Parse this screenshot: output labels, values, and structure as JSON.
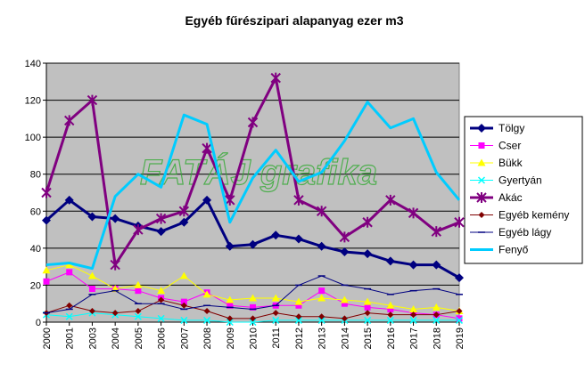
{
  "chart_data": {
    "type": "line",
    "title": "Egyéb fűrészipari alapanyag ezer m3",
    "xlabel": "",
    "ylabel": "",
    "ylim": [
      0,
      140
    ],
    "yticks": [
      0,
      20,
      40,
      60,
      80,
      100,
      120,
      140
    ],
    "grid": true,
    "legend_position": "right",
    "plot_background": "#c0c0c0",
    "categories": [
      "2000",
      "2001",
      "2003",
      "2004",
      "2005",
      "2006",
      "2007",
      "2008",
      "2009",
      "2010",
      "2011",
      "2012",
      "2013",
      "2014",
      "2015",
      "2016",
      "2017",
      "2018",
      "2019"
    ],
    "series": [
      {
        "name": "Tölgy",
        "color": "#000080",
        "marker": "diamond",
        "width": 3,
        "values": [
          55,
          66,
          57,
          56,
          52,
          49,
          54,
          66,
          41,
          42,
          47,
          45,
          41,
          38,
          37,
          33,
          31,
          31,
          24
        ]
      },
      {
        "name": "Cser",
        "color": "#ff00ff",
        "marker": "square",
        "width": 1,
        "values": [
          22,
          27,
          18,
          18,
          17,
          13,
          11,
          16,
          9,
          8,
          9,
          9,
          17,
          10,
          8,
          7,
          5,
          4,
          2
        ]
      },
      {
        "name": "Bükk",
        "color": "#ffff00",
        "marker": "triangle",
        "width": 1,
        "values": [
          28,
          31,
          25,
          18,
          20,
          17,
          25,
          15,
          12,
          13,
          13,
          11,
          13,
          12,
          11,
          9,
          7,
          8,
          6
        ]
      },
      {
        "name": "Gyertyán",
        "color": "#00ffff",
        "marker": "x",
        "width": 1,
        "values": [
          4,
          3,
          5,
          4,
          3,
          2,
          1,
          1,
          0,
          0,
          1,
          1,
          1,
          1,
          1,
          1,
          1,
          1,
          1
        ]
      },
      {
        "name": "Akác",
        "color": "#800080",
        "marker": "star",
        "width": 3,
        "values": [
          70,
          109,
          120,
          31,
          50,
          56,
          60,
          94,
          66,
          108,
          132,
          66,
          60,
          46,
          54,
          66,
          59,
          49,
          54
        ]
      },
      {
        "name": "Egyéb kemény",
        "color": "#800000",
        "marker": "diamond-small",
        "width": 1,
        "values": [
          5,
          9,
          6,
          5,
          6,
          12,
          9,
          6,
          2,
          2,
          5,
          3,
          3,
          2,
          5,
          4,
          4,
          4,
          6
        ]
      },
      {
        "name": "Egyéb lágy",
        "color": "#000080",
        "marker": "dash",
        "width": 1,
        "values": [
          5,
          7,
          15,
          17,
          10,
          10,
          7,
          9,
          8,
          7,
          9,
          20,
          25,
          20,
          18,
          15,
          17,
          18,
          15
        ]
      },
      {
        "name": "Fenyő",
        "color": "#00ccff",
        "marker": "none",
        "width": 3,
        "values": [
          31,
          32,
          29,
          68,
          80,
          73,
          112,
          107,
          54,
          78,
          93,
          76,
          81,
          98,
          119,
          105,
          110,
          81,
          66
        ]
      }
    ]
  },
  "watermark": {
    "text": "FATÁJ grafika",
    "color": "#33aa33"
  }
}
